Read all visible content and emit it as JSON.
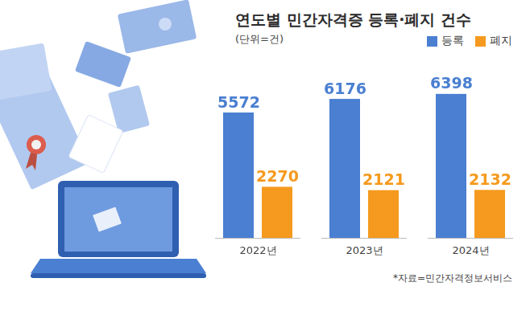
{
  "chart_data": {
    "type": "bar",
    "title": "연도별 민간자격증 등록·폐지 건수",
    "subtitle": "(단위=건)",
    "source": "*자료=민간자격정보서비스",
    "categories": [
      "2022년",
      "2023년",
      "2024년"
    ],
    "series": [
      {
        "name": "등록",
        "color": "#4a7fd1",
        "values": [
          5572,
          6176,
          6398
        ]
      },
      {
        "name": "폐지",
        "color": "#f59a1e",
        "values": [
          2270,
          2121,
          2132
        ]
      }
    ],
    "ylim": [
      0,
      7000
    ],
    "data_labels": true,
    "tick_labels": "x",
    "grid": false,
    "legend": "top-right"
  }
}
